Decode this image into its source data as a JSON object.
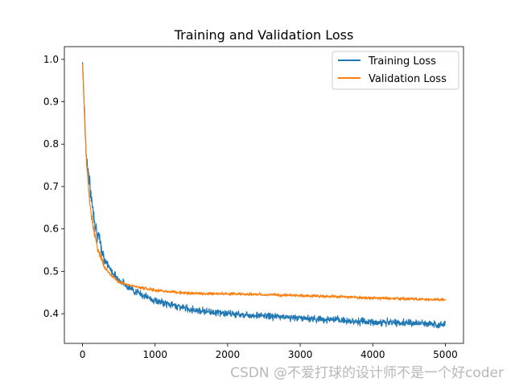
{
  "chart_data": {
    "type": "line",
    "title": "Training and Validation Loss",
    "xlabel": "",
    "ylabel": "",
    "xlim": [
      -250,
      5250
    ],
    "ylim": [
      0.33,
      1.03
    ],
    "xticks": [
      0,
      1000,
      2000,
      3000,
      4000,
      5000
    ],
    "yticks": [
      0.4,
      0.5,
      0.6,
      0.7,
      0.8,
      0.9,
      1.0
    ],
    "xtick_labels": [
      "0",
      "1000",
      "2000",
      "3000",
      "4000",
      "5000"
    ],
    "ytick_labels": [
      "0.4",
      "0.5",
      "0.6",
      "0.7",
      "0.8",
      "0.9",
      "1.0"
    ],
    "grid": false,
    "legend_position": "top-right",
    "series": [
      {
        "name": "Training Loss",
        "color": "#1f77b4",
        "x": [
          0,
          50,
          100,
          150,
          200,
          300,
          400,
          500,
          700,
          1000,
          1500,
          2000,
          2500,
          3000,
          3500,
          4000,
          4500,
          5000
        ],
        "y": [
          1.0,
          0.78,
          0.7,
          0.64,
          0.59,
          0.53,
          0.5,
          0.48,
          0.455,
          0.43,
          0.41,
          0.4,
          0.395,
          0.39,
          0.385,
          0.38,
          0.378,
          0.375
        ],
        "noise": 0.012
      },
      {
        "name": "Validation Loss",
        "color": "#ff7f0e",
        "x": [
          0,
          50,
          100,
          150,
          200,
          300,
          400,
          500,
          700,
          1000,
          1500,
          2000,
          2500,
          3000,
          3500,
          4000,
          4500,
          5000
        ],
        "y": [
          0.99,
          0.77,
          0.66,
          0.6,
          0.56,
          0.51,
          0.49,
          0.475,
          0.465,
          0.455,
          0.448,
          0.447,
          0.445,
          0.443,
          0.44,
          0.437,
          0.435,
          0.433
        ],
        "noise": 0.005
      }
    ]
  },
  "watermark": "CSDN @不爱打球的设计师不是一个好coder"
}
